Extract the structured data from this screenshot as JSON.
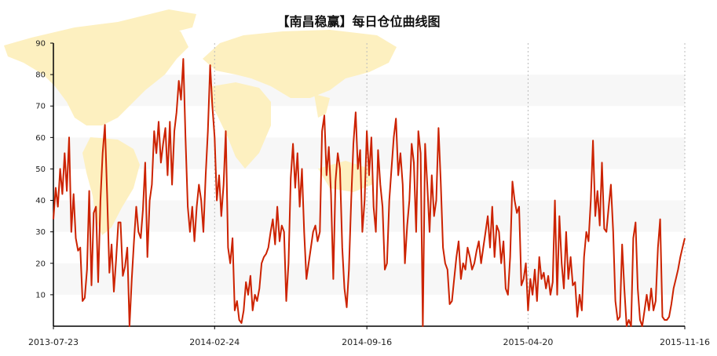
{
  "chart_data": {
    "type": "line",
    "title": "【南昌稳赢】每日仓位曲线图",
    "xlabel": "",
    "ylabel": "",
    "ylim": [
      0,
      90
    ],
    "yticks": [
      10,
      20,
      30,
      40,
      50,
      60,
      70,
      80,
      90
    ],
    "x_tick_labels": [
      "2013-07-23",
      "2014-02-24",
      "2014-09-16",
      "2015-04-20",
      "2015-11-16"
    ],
    "x_range": [
      "2013-07-23",
      "2015-11-16"
    ],
    "grid": "alternating horizontal bands, dotted vertical lines at date ticks",
    "line_color": "#cc2200",
    "band_color": "#f7f7f7",
    "map_color": "#fdf0c0",
    "series": [
      {
        "points": [
          [
            "2013-07-23",
            34
          ],
          [
            "2013-07-26",
            44
          ],
          [
            "2013-07-29",
            38
          ],
          [
            "2013-08-01",
            50
          ],
          [
            "2013-08-04",
            42
          ],
          [
            "2013-08-07",
            55
          ],
          [
            "2013-08-10",
            43
          ],
          [
            "2013-08-13",
            60
          ],
          [
            "2013-08-16",
            30
          ],
          [
            "2013-08-19",
            42
          ],
          [
            "2013-08-22",
            28
          ],
          [
            "2013-08-25",
            24
          ],
          [
            "2013-08-28",
            25
          ],
          [
            "2013-08-31",
            8
          ],
          [
            "2013-09-03",
            9
          ],
          [
            "2013-09-06",
            18
          ],
          [
            "2013-09-09",
            43
          ],
          [
            "2013-09-12",
            13
          ],
          [
            "2013-09-15",
            36
          ],
          [
            "2013-09-18",
            38
          ],
          [
            "2013-09-21",
            14
          ],
          [
            "2013-09-24",
            40
          ],
          [
            "2013-09-27",
            55
          ],
          [
            "2013-09-30",
            64
          ],
          [
            "2013-10-03",
            42
          ],
          [
            "2013-10-06",
            17
          ],
          [
            "2013-10-09",
            26
          ],
          [
            "2013-10-12",
            11
          ],
          [
            "2013-10-15",
            21
          ],
          [
            "2013-10-18",
            33
          ],
          [
            "2013-10-21",
            33
          ],
          [
            "2013-10-24",
            16
          ],
          [
            "2013-10-27",
            19
          ],
          [
            "2013-10-30",
            25
          ],
          [
            "2013-11-02",
            0
          ],
          [
            "2013-11-05",
            15
          ],
          [
            "2013-11-08",
            27
          ],
          [
            "2013-11-11",
            38
          ],
          [
            "2013-11-14",
            30
          ],
          [
            "2013-11-17",
            28
          ],
          [
            "2013-11-20",
            37
          ],
          [
            "2013-11-23",
            52
          ],
          [
            "2013-11-26",
            22
          ],
          [
            "2013-11-29",
            40
          ],
          [
            "2013-12-02",
            45
          ],
          [
            "2013-12-05",
            62
          ],
          [
            "2013-12-08",
            55
          ],
          [
            "2013-12-11",
            65
          ],
          [
            "2013-12-14",
            52
          ],
          [
            "2013-12-17",
            58
          ],
          [
            "2013-12-20",
            63
          ],
          [
            "2013-12-23",
            48
          ],
          [
            "2013-12-26",
            65
          ],
          [
            "2013-12-29",
            45
          ],
          [
            "2014-01-01",
            62
          ],
          [
            "2014-01-04",
            68
          ],
          [
            "2014-01-07",
            78
          ],
          [
            "2014-01-10",
            72
          ],
          [
            "2014-01-13",
            85
          ],
          [
            "2014-01-16",
            60
          ],
          [
            "2014-01-19",
            38
          ],
          [
            "2014-01-22",
            30
          ],
          [
            "2014-01-25",
            38
          ],
          [
            "2014-01-28",
            27
          ],
          [
            "2014-01-31",
            38
          ],
          [
            "2014-02-03",
            45
          ],
          [
            "2014-02-06",
            40
          ],
          [
            "2014-02-09",
            30
          ],
          [
            "2014-02-12",
            48
          ],
          [
            "2014-02-15",
            62
          ],
          [
            "2014-02-18",
            83
          ],
          [
            "2014-02-21",
            70
          ],
          [
            "2014-02-24",
            60
          ],
          [
            "2014-02-27",
            40
          ],
          [
            "2014-03-02",
            48
          ],
          [
            "2014-03-05",
            35
          ],
          [
            "2014-03-08",
            45
          ],
          [
            "2014-03-11",
            62
          ],
          [
            "2014-03-14",
            25
          ],
          [
            "2014-03-17",
            20
          ],
          [
            "2014-03-20",
            28
          ],
          [
            "2014-03-23",
            5
          ],
          [
            "2014-03-26",
            8
          ],
          [
            "2014-03-29",
            2
          ],
          [
            "2014-04-01",
            1
          ],
          [
            "2014-04-04",
            5
          ],
          [
            "2014-04-07",
            14
          ],
          [
            "2014-04-10",
            10
          ],
          [
            "2014-04-13",
            16
          ],
          [
            "2014-04-16",
            5
          ],
          [
            "2014-04-19",
            10
          ],
          [
            "2014-04-22",
            8
          ],
          [
            "2014-04-25",
            12
          ],
          [
            "2014-04-28",
            20
          ],
          [
            "2014-05-01",
            22
          ],
          [
            "2014-05-04",
            23
          ],
          [
            "2014-05-07",
            25
          ],
          [
            "2014-05-10",
            30
          ],
          [
            "2014-05-13",
            34
          ],
          [
            "2014-05-16",
            26
          ],
          [
            "2014-05-19",
            38
          ],
          [
            "2014-05-22",
            27
          ],
          [
            "2014-05-25",
            32
          ],
          [
            "2014-05-28",
            30
          ],
          [
            "2014-05-31",
            8
          ],
          [
            "2014-06-03",
            20
          ],
          [
            "2014-06-06",
            47
          ],
          [
            "2014-06-09",
            58
          ],
          [
            "2014-06-12",
            44
          ],
          [
            "2014-06-15",
            55
          ],
          [
            "2014-06-18",
            38
          ],
          [
            "2014-06-21",
            50
          ],
          [
            "2014-06-24",
            30
          ],
          [
            "2014-06-27",
            15
          ],
          [
            "2014-06-30",
            20
          ],
          [
            "2014-07-03",
            25
          ],
          [
            "2014-07-06",
            30
          ],
          [
            "2014-07-09",
            32
          ],
          [
            "2014-07-12",
            27
          ],
          [
            "2014-07-15",
            30
          ],
          [
            "2014-07-18",
            62
          ],
          [
            "2014-07-21",
            67
          ],
          [
            "2014-07-24",
            48
          ],
          [
            "2014-07-27",
            57
          ],
          [
            "2014-07-30",
            42
          ],
          [
            "2014-08-02",
            15
          ],
          [
            "2014-08-05",
            46
          ],
          [
            "2014-08-08",
            55
          ],
          [
            "2014-08-11",
            50
          ],
          [
            "2014-08-14",
            25
          ],
          [
            "2014-08-17",
            12
          ],
          [
            "2014-08-20",
            6
          ],
          [
            "2014-08-23",
            18
          ],
          [
            "2014-08-26",
            40
          ],
          [
            "2014-08-29",
            58
          ],
          [
            "2014-09-01",
            68
          ],
          [
            "2014-09-04",
            50
          ],
          [
            "2014-09-07",
            56
          ],
          [
            "2014-09-10",
            30
          ],
          [
            "2014-09-13",
            40
          ],
          [
            "2014-09-16",
            62
          ],
          [
            "2014-09-19",
            48
          ],
          [
            "2014-09-22",
            60
          ],
          [
            "2014-09-25",
            38
          ],
          [
            "2014-09-28",
            30
          ],
          [
            "2014-10-01",
            56
          ],
          [
            "2014-10-04",
            45
          ],
          [
            "2014-10-07",
            38
          ],
          [
            "2014-10-10",
            18
          ],
          [
            "2014-10-13",
            20
          ],
          [
            "2014-10-16",
            40
          ],
          [
            "2014-10-19",
            50
          ],
          [
            "2014-10-22",
            60
          ],
          [
            "2014-10-25",
            66
          ],
          [
            "2014-10-28",
            48
          ],
          [
            "2014-10-31",
            55
          ],
          [
            "2014-11-03",
            45
          ],
          [
            "2014-11-06",
            20
          ],
          [
            "2014-11-09",
            32
          ],
          [
            "2014-11-12",
            40
          ],
          [
            "2014-11-15",
            58
          ],
          [
            "2014-11-18",
            52
          ],
          [
            "2014-11-21",
            30
          ],
          [
            "2014-11-24",
            62
          ],
          [
            "2014-11-27",
            55
          ],
          [
            "2014-11-30",
            0
          ],
          [
            "2014-12-03",
            58
          ],
          [
            "2014-12-06",
            45
          ],
          [
            "2014-12-09",
            30
          ],
          [
            "2014-12-12",
            48
          ],
          [
            "2014-12-15",
            35
          ],
          [
            "2014-12-18",
            40
          ],
          [
            "2014-12-21",
            63
          ],
          [
            "2014-12-24",
            46
          ],
          [
            "2014-12-27",
            25
          ],
          [
            "2014-12-30",
            20
          ],
          [
            "2015-01-02",
            18
          ],
          [
            "2015-01-05",
            7
          ],
          [
            "2015-01-08",
            8
          ],
          [
            "2015-01-11",
            15
          ],
          [
            "2015-01-14",
            22
          ],
          [
            "2015-01-17",
            27
          ],
          [
            "2015-01-20",
            15
          ],
          [
            "2015-01-23",
            20
          ],
          [
            "2015-01-26",
            18
          ],
          [
            "2015-01-29",
            25
          ],
          [
            "2015-02-01",
            22
          ],
          [
            "2015-02-04",
            18
          ],
          [
            "2015-02-07",
            20
          ],
          [
            "2015-02-10",
            24
          ],
          [
            "2015-02-13",
            27
          ],
          [
            "2015-02-16",
            20
          ],
          [
            "2015-02-19",
            25
          ],
          [
            "2015-02-22",
            30
          ],
          [
            "2015-02-25",
            35
          ],
          [
            "2015-02-28",
            25
          ],
          [
            "2015-03-03",
            38
          ],
          [
            "2015-03-06",
            22
          ],
          [
            "2015-03-09",
            32
          ],
          [
            "2015-03-12",
            30
          ],
          [
            "2015-03-15",
            20
          ],
          [
            "2015-03-18",
            27
          ],
          [
            "2015-03-21",
            12
          ],
          [
            "2015-03-24",
            10
          ],
          [
            "2015-03-27",
            22
          ],
          [
            "2015-03-30",
            46
          ],
          [
            "2015-04-02",
            40
          ],
          [
            "2015-04-05",
            36
          ],
          [
            "2015-04-08",
            38
          ],
          [
            "2015-04-11",
            13
          ],
          [
            "2015-04-14",
            15
          ],
          [
            "2015-04-17",
            20
          ],
          [
            "2015-04-20",
            5
          ],
          [
            "2015-04-23",
            15
          ],
          [
            "2015-04-26",
            10
          ],
          [
            "2015-04-29",
            18
          ],
          [
            "2015-05-02",
            8
          ],
          [
            "2015-05-05",
            22
          ],
          [
            "2015-05-08",
            15
          ],
          [
            "2015-05-11",
            17
          ],
          [
            "2015-05-14",
            12
          ],
          [
            "2015-05-17",
            16
          ],
          [
            "2015-05-20",
            10
          ],
          [
            "2015-05-23",
            14
          ],
          [
            "2015-05-26",
            40
          ],
          [
            "2015-05-29",
            10
          ],
          [
            "2015-06-01",
            35
          ],
          [
            "2015-06-04",
            20
          ],
          [
            "2015-06-07",
            12
          ],
          [
            "2015-06-10",
            30
          ],
          [
            "2015-06-13",
            15
          ],
          [
            "2015-06-16",
            22
          ],
          [
            "2015-06-19",
            13
          ],
          [
            "2015-06-22",
            14
          ],
          [
            "2015-06-25",
            3
          ],
          [
            "2015-06-28",
            10
          ],
          [
            "2015-07-01",
            5
          ],
          [
            "2015-07-04",
            22
          ],
          [
            "2015-07-07",
            30
          ],
          [
            "2015-07-10",
            27
          ],
          [
            "2015-07-13",
            40
          ],
          [
            "2015-07-16",
            59
          ],
          [
            "2015-07-19",
            35
          ],
          [
            "2015-07-22",
            43
          ],
          [
            "2015-07-25",
            32
          ],
          [
            "2015-07-28",
            52
          ],
          [
            "2015-07-31",
            31
          ],
          [
            "2015-08-03",
            30
          ],
          [
            "2015-08-06",
            38
          ],
          [
            "2015-08-09",
            45
          ],
          [
            "2015-08-12",
            30
          ],
          [
            "2015-08-15",
            8
          ],
          [
            "2015-08-18",
            2
          ],
          [
            "2015-08-21",
            3
          ],
          [
            "2015-08-24",
            26
          ],
          [
            "2015-08-27",
            12
          ],
          [
            "2015-08-30",
            0
          ],
          [
            "2015-09-02",
            2
          ],
          [
            "2015-09-05",
            0
          ],
          [
            "2015-09-08",
            28
          ],
          [
            "2015-09-11",
            33
          ],
          [
            "2015-09-14",
            12
          ],
          [
            "2015-09-17",
            2
          ],
          [
            "2015-09-20",
            0
          ],
          [
            "2015-09-23",
            5
          ],
          [
            "2015-09-26",
            10
          ],
          [
            "2015-09-29",
            5
          ],
          [
            "2015-10-02",
            12
          ],
          [
            "2015-10-05",
            5
          ],
          [
            "2015-10-08",
            8
          ],
          [
            "2015-10-11",
            25
          ],
          [
            "2015-10-14",
            34
          ],
          [
            "2015-10-17",
            3
          ],
          [
            "2015-10-20",
            2
          ],
          [
            "2015-10-23",
            2
          ],
          [
            "2015-10-26",
            3
          ],
          [
            "2015-10-29",
            7
          ],
          [
            "2015-11-01",
            12
          ],
          [
            "2015-11-04",
            15
          ],
          [
            "2015-11-07",
            18
          ],
          [
            "2015-11-10",
            22
          ],
          [
            "2015-11-13",
            25
          ],
          [
            "2015-11-16",
            28
          ]
        ]
      }
    ]
  }
}
